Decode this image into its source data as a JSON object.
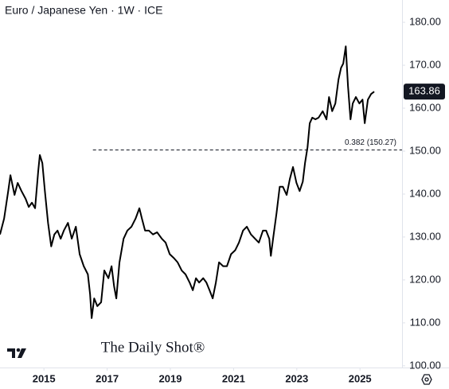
{
  "chart_data": {
    "type": "line",
    "title": "Euro / Japanese Yen · 1W · ICE",
    "watermark": "The Daily Shot®",
    "x": [
      2013.61,
      2013.74,
      2013.87,
      2013.94,
      2014.07,
      2014.17,
      2014.29,
      2014.42,
      2014.52,
      2014.62,
      2014.72,
      2014.82,
      2014.87,
      2014.95,
      2015.03,
      2015.13,
      2015.23,
      2015.33,
      2015.43,
      2015.53,
      2015.63,
      2015.76,
      2015.88,
      2016.01,
      2016.13,
      2016.26,
      2016.39,
      2016.46,
      2016.51,
      2016.59,
      2016.69,
      2016.81,
      2016.91,
      2017.04,
      2017.14,
      2017.22,
      2017.29,
      2017.39,
      2017.52,
      2017.64,
      2017.77,
      2017.9,
      2018.02,
      2018.1,
      2018.2,
      2018.32,
      2018.45,
      2018.58,
      2018.73,
      2018.85,
      2018.98,
      2019.11,
      2019.23,
      2019.36,
      2019.48,
      2019.61,
      2019.71,
      2019.81,
      2019.91,
      2020.04,
      2020.14,
      2020.24,
      2020.34,
      2020.44,
      2020.54,
      2020.67,
      2020.79,
      2020.92,
      2021.05,
      2021.17,
      2021.3,
      2021.42,
      2021.55,
      2021.68,
      2021.8,
      2021.93,
      2022.03,
      2022.13,
      2022.18,
      2022.25,
      2022.36,
      2022.46,
      2022.56,
      2022.68,
      2022.78,
      2022.88,
      2022.99,
      2023.09,
      2023.19,
      2023.26,
      2023.34,
      2023.41,
      2023.49,
      2023.59,
      2023.69,
      2023.82,
      2023.94,
      2024.02,
      2024.12,
      2024.22,
      2024.32,
      2024.4,
      2024.47,
      2024.55,
      2024.62,
      2024.7,
      2024.77,
      2024.87,
      2024.98,
      2025.08,
      2025.15,
      2025.25,
      2025.35,
      2025.45
    ],
    "series": [
      {
        "name": "EUR/JPY",
        "color": "#000000",
        "values": [
          130.6,
          134.3,
          140.7,
          144.4,
          139.8,
          142.6,
          140.7,
          138.9,
          137.0,
          138.0,
          136.7,
          145.4,
          149.1,
          147.2,
          140.7,
          133.3,
          127.8,
          130.6,
          131.5,
          129.6,
          131.5,
          133.3,
          129.6,
          132.4,
          126.0,
          123.2,
          121.3,
          116.7,
          111.1,
          115.7,
          113.9,
          114.8,
          122.2,
          120.4,
          123.2,
          118.5,
          115.7,
          124.1,
          129.6,
          131.5,
          132.4,
          134.3,
          136.7,
          134.3,
          131.5,
          131.5,
          130.6,
          131.1,
          129.6,
          128.7,
          126.0,
          125.1,
          124.1,
          122.2,
          121.3,
          119.4,
          117.6,
          120.4,
          119.4,
          120.4,
          119.4,
          117.6,
          115.7,
          119.4,
          124.1,
          123.2,
          123.2,
          126.0,
          126.9,
          128.7,
          131.5,
          132.4,
          130.6,
          129.6,
          128.7,
          131.5,
          131.5,
          129.6,
          125.6,
          129.6,
          135.6,
          141.7,
          141.7,
          139.8,
          143.5,
          146.3,
          142.6,
          140.7,
          142.9,
          147.2,
          150.9,
          156.5,
          157.8,
          157.4,
          157.8,
          159.3,
          157.4,
          162.6,
          159.3,
          161.1,
          166.7,
          169.4,
          170.4,
          174.4,
          165.2,
          157.4,
          161.1,
          162.6,
          161.1,
          162.0,
          156.5,
          162.0,
          163.3,
          163.86
        ]
      }
    ],
    "annotation": {
      "text": "0.382 (150.27)",
      "value": 150.27,
      "start": 2016.55
    },
    "xlim": [
      2013.61,
      2026.33
    ],
    "xticks": [
      2015,
      2017,
      2019,
      2021,
      2023,
      2025
    ],
    "ylim": [
      99.6,
      185.2
    ],
    "yticks": [
      {
        "value": 100,
        "label": "100.00"
      },
      {
        "value": 110,
        "label": "110.00"
      },
      {
        "value": 120,
        "label": "120.00"
      },
      {
        "value": 130,
        "label": "130.00"
      },
      {
        "value": 140,
        "label": "140.00"
      },
      {
        "value": 150,
        "label": "150.00"
      },
      {
        "value": 160,
        "label": "160.00"
      },
      {
        "value": 170,
        "label": "170.00"
      },
      {
        "value": 180,
        "label": "180.00"
      }
    ]
  }
}
